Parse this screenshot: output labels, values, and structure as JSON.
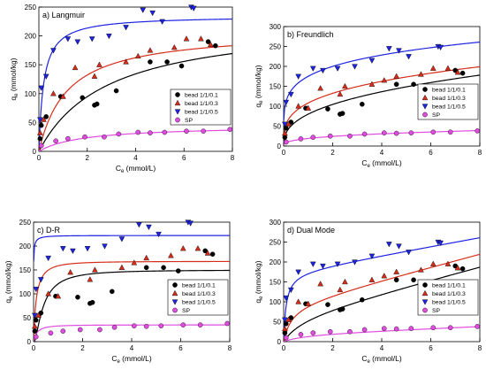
{
  "colors": {
    "bead_0_1": "#000000",
    "bead_0_3": "#d62d1a",
    "bead_0_5": "#1d23e0",
    "sp": "#e04be0"
  },
  "chart_data": [
    {
      "type": "scatter",
      "panel_label": "a) Langmuir",
      "xlabel": "Ce (mmol/L)",
      "xlabel_main": "C",
      "xlabel_sub": "e",
      "xlabel_unit": " (mmol/L)",
      "ylabel": "qe (mmol/kg)",
      "ylabel_main": "q",
      "ylabel_sub": "e",
      "ylabel_unit": " (mmol/kg)",
      "xlim": [
        0,
        8
      ],
      "ylim": [
        0,
        250
      ],
      "xticks": [
        "0",
        "2",
        "4",
        "6",
        "8"
      ],
      "yticks": [
        "0",
        "50",
        "100",
        "150",
        "200",
        "250"
      ],
      "grid": false,
      "legend_position": "lower-right",
      "series": [
        {
          "name": "bead 1/1/0.1",
          "color": "#000000",
          "marker": "circle",
          "x": [
            0.05,
            0.1,
            0.3,
            0.9,
            1.8,
            2.3,
            2.4,
            3.2,
            4.6,
            5.3,
            5.9,
            7.0,
            7.3
          ],
          "y": [
            22,
            45,
            60,
            95,
            93,
            80,
            82,
            105,
            155,
            155,
            148,
            190,
            183
          ]
        },
        {
          "name": "bead 1/1/0.3",
          "color": "#d62d1a",
          "marker": "triangle-up",
          "x": [
            0.05,
            0.2,
            0.6,
            1.0,
            1.5,
            2.3,
            2.5,
            3.6,
            4.1,
            4.6,
            5.6,
            6.1,
            6.7,
            7.1
          ],
          "y": [
            32,
            55,
            100,
            95,
            145,
            130,
            150,
            155,
            165,
            175,
            180,
            195,
            195,
            185
          ]
        },
        {
          "name": "bead 1/1/0.5",
          "color": "#1d23e0",
          "marker": "triangle-down",
          "x": [
            0.05,
            0.1,
            0.3,
            0.6,
            1.2,
            1.6,
            2.2,
            2.9,
            3.6,
            4.3,
            4.7,
            5.1,
            6.3,
            6.4
          ],
          "y": [
            55,
            110,
            130,
            175,
            195,
            190,
            195,
            200,
            215,
            245,
            240,
            225,
            250,
            248
          ]
        },
        {
          "name": "SP",
          "color": "#e04be0",
          "marker": "circle",
          "x": [
            0.1,
            0.7,
            1.2,
            1.9,
            2.7,
            3.3,
            4.1,
            4.6,
            5.2,
            6.1,
            6.8,
            7.9
          ],
          "y": [
            10,
            18,
            22,
            25,
            25,
            30,
            33,
            32,
            33,
            35,
            35,
            38
          ]
        }
      ],
      "fit_model": "langmuir",
      "fits": [
        {
          "series": "bead 1/1/0.1",
          "qm": 230,
          "KL": 0.35
        },
        {
          "series": "bead 1/1/0.3",
          "qm": 210,
          "KL": 0.85
        },
        {
          "series": "bead 1/1/0.5",
          "qm": 235,
          "KL": 5
        },
        {
          "series": "SP",
          "qm": 45,
          "KL": 0.55
        }
      ]
    },
    {
      "type": "scatter",
      "panel_label": "b) Freundlich",
      "xlabel": "Ce (mmol/L)",
      "xlabel_main": "C",
      "xlabel_sub": "e",
      "xlabel_unit": " (mmol/L)",
      "ylabel": "qe (mmol/kg)",
      "ylabel_main": "q",
      "ylabel_sub": "e",
      "ylabel_unit": " (mmol/kg)",
      "xlim": [
        0,
        8
      ],
      "ylim": [
        0,
        300
      ],
      "xticks": [
        "0",
        "2",
        "4",
        "6",
        "8"
      ],
      "yticks": [
        "0",
        "50",
        "100",
        "150",
        "200",
        "250",
        "300"
      ],
      "grid": false,
      "legend_position": "lower-right",
      "series": [
        {
          "name": "bead 1/1/0.1",
          "color": "#000000",
          "marker": "circle",
          "x": [
            0.05,
            0.1,
            0.3,
            0.9,
            1.8,
            2.3,
            2.4,
            3.2,
            4.6,
            5.3,
            5.9,
            7.0,
            7.3
          ],
          "y": [
            22,
            45,
            60,
            95,
            93,
            80,
            82,
            105,
            155,
            155,
            148,
            190,
            183
          ]
        },
        {
          "name": "bead 1/1/0.3",
          "color": "#d62d1a",
          "marker": "triangle-up",
          "x": [
            0.05,
            0.2,
            0.6,
            1.0,
            1.5,
            2.3,
            2.5,
            3.6,
            4.1,
            4.6,
            5.6,
            6.1,
            6.7,
            7.1
          ],
          "y": [
            32,
            55,
            100,
            95,
            145,
            130,
            150,
            155,
            165,
            175,
            180,
            195,
            195,
            185
          ]
        },
        {
          "name": "bead 1/1/0.5",
          "color": "#1d23e0",
          "marker": "triangle-down",
          "x": [
            0.05,
            0.1,
            0.3,
            0.6,
            1.2,
            1.6,
            2.2,
            2.9,
            3.6,
            4.3,
            4.7,
            5.1,
            6.3,
            6.4
          ],
          "y": [
            55,
            110,
            130,
            175,
            195,
            190,
            195,
            200,
            215,
            245,
            240,
            225,
            250,
            248
          ]
        },
        {
          "name": "SP",
          "color": "#e04be0",
          "marker": "circle",
          "x": [
            0.1,
            0.7,
            1.2,
            1.9,
            2.7,
            3.3,
            4.1,
            4.6,
            5.2,
            6.1,
            6.8,
            7.9
          ],
          "y": [
            10,
            18,
            22,
            25,
            25,
            30,
            33,
            32,
            33,
            35,
            35,
            38
          ]
        }
      ],
      "fit_model": "freundlich",
      "fits": [
        {
          "series": "bead 1/1/0.1",
          "KF": 80,
          "n": 2.6
        },
        {
          "series": "bead 1/1/0.3",
          "KF": 108,
          "n": 3.4
        },
        {
          "series": "bead 1/1/0.5",
          "KF": 175,
          "n": 5.2
        },
        {
          "series": "SP",
          "KF": 19,
          "n": 2.9
        }
      ]
    },
    {
      "type": "scatter",
      "panel_label": "c) D-R",
      "xlabel": "Ce (mmol/L)",
      "xlabel_main": "C",
      "xlabel_sub": "e",
      "xlabel_unit": " (mmol/L)",
      "ylabel": "qe (mmol/kg)",
      "ylabel_main": "q",
      "ylabel_sub": "e",
      "ylabel_unit": " (mmol/kg)",
      "xlim": [
        0,
        8
      ],
      "ylim": [
        0,
        250
      ],
      "xticks": [
        "0",
        "2",
        "4",
        "6",
        "8"
      ],
      "yticks": [
        "0",
        "50",
        "100",
        "150",
        "200",
        "250"
      ],
      "grid": false,
      "legend_position": "lower-right",
      "series": [
        {
          "name": "bead 1/1/0.1",
          "color": "#000000",
          "marker": "circle",
          "x": [
            0.05,
            0.1,
            0.3,
            0.9,
            1.8,
            2.3,
            2.4,
            3.2,
            4.6,
            5.3,
            5.9,
            7.0,
            7.3
          ],
          "y": [
            22,
            45,
            60,
            95,
            93,
            80,
            82,
            105,
            155,
            155,
            148,
            190,
            183
          ]
        },
        {
          "name": "bead 1/1/0.3",
          "color": "#d62d1a",
          "marker": "triangle-up",
          "x": [
            0.05,
            0.2,
            0.6,
            1.0,
            1.5,
            2.3,
            2.5,
            3.6,
            4.1,
            4.6,
            5.6,
            6.1,
            6.7,
            7.1
          ],
          "y": [
            32,
            55,
            100,
            95,
            145,
            130,
            150,
            155,
            165,
            175,
            180,
            195,
            195,
            185
          ]
        },
        {
          "name": "bead 1/1/0.5",
          "color": "#1d23e0",
          "marker": "triangle-down",
          "x": [
            0.05,
            0.1,
            0.3,
            0.6,
            1.2,
            1.6,
            2.2,
            2.9,
            3.6,
            4.3,
            4.7,
            5.1,
            6.3,
            6.4
          ],
          "y": [
            55,
            110,
            130,
            175,
            195,
            190,
            195,
            200,
            215,
            245,
            240,
            225,
            250,
            248
          ]
        },
        {
          "name": "SP",
          "color": "#e04be0",
          "marker": "circle",
          "x": [
            0.1,
            0.7,
            1.2,
            1.9,
            2.7,
            3.3,
            4.1,
            4.6,
            5.2,
            6.1,
            6.8,
            7.9
          ],
          "y": [
            10,
            18,
            22,
            25,
            25,
            30,
            33,
            32,
            33,
            35,
            35,
            38
          ]
        }
      ],
      "fit_model": "dubinin-radushkevich",
      "fits": [
        {
          "series": "bead 1/1/0.1",
          "qm": 150,
          "B": 0.45
        },
        {
          "series": "bead 1/1/0.3",
          "qm": 168,
          "B": 0.12
        },
        {
          "series": "bead 1/1/0.5",
          "qm": 222,
          "B": 0.01
        },
        {
          "series": "SP",
          "qm": 35,
          "B": 0.14
        }
      ]
    },
    {
      "type": "scatter",
      "panel_label": "d) Dual Mode",
      "xlabel": "Ce (mmol/L)",
      "xlabel_main": "C",
      "xlabel_sub": "e",
      "xlabel_unit": " (mmol/L)",
      "ylabel": "qe (mmol/kg)",
      "ylabel_main": "q",
      "ylabel_sub": "e",
      "ylabel_unit": " (mmol/kg)",
      "xlim": [
        0,
        8
      ],
      "ylim": [
        0,
        300
      ],
      "xticks": [
        "0",
        "2",
        "4",
        "6",
        "8"
      ],
      "yticks": [
        "0",
        "50",
        "100",
        "150",
        "200",
        "250",
        "300"
      ],
      "grid": false,
      "legend_position": "lower-right",
      "series": [
        {
          "name": "bead 1/1/0.1",
          "color": "#000000",
          "marker": "circle",
          "x": [
            0.05,
            0.1,
            0.3,
            0.9,
            1.8,
            2.3,
            2.4,
            3.2,
            4.6,
            5.3,
            5.9,
            7.0,
            7.3
          ],
          "y": [
            22,
            45,
            60,
            95,
            93,
            80,
            82,
            105,
            155,
            155,
            148,
            190,
            183
          ]
        },
        {
          "name": "bead 1/1/0.3",
          "color": "#d62d1a",
          "marker": "triangle-up",
          "x": [
            0.05,
            0.2,
            0.6,
            1.0,
            1.5,
            2.3,
            2.5,
            3.6,
            4.1,
            4.6,
            5.6,
            6.1,
            6.7,
            7.1
          ],
          "y": [
            32,
            55,
            100,
            95,
            145,
            130,
            150,
            155,
            165,
            175,
            180,
            195,
            195,
            185
          ]
        },
        {
          "name": "bead 1/1/0.5",
          "color": "#1d23e0",
          "marker": "triangle-down",
          "x": [
            0.05,
            0.1,
            0.3,
            0.6,
            1.2,
            1.6,
            2.2,
            2.9,
            3.6,
            4.3,
            4.7,
            5.1,
            6.3,
            6.4
          ],
          "y": [
            55,
            110,
            130,
            175,
            195,
            190,
            195,
            200,
            215,
            245,
            240,
            225,
            250,
            248
          ]
        },
        {
          "name": "SP",
          "color": "#e04be0",
          "marker": "circle",
          "x": [
            0.1,
            0.7,
            1.2,
            1.9,
            2.7,
            3.3,
            4.1,
            4.6,
            5.2,
            6.1,
            6.8,
            7.9
          ],
          "y": [
            10,
            18,
            22,
            25,
            25,
            30,
            33,
            32,
            33,
            35,
            35,
            38
          ]
        }
      ],
      "fit_model": "dual-mode",
      "fits": [
        {
          "series": "bead 1/1/0.1",
          "kD": 16,
          "qm": 65,
          "b": 1.2
        },
        {
          "series": "bead 1/1/0.3",
          "kD": 16,
          "qm": 95,
          "b": 3
        },
        {
          "series": "bead 1/1/0.5",
          "kD": 11,
          "qm": 175,
          "b": 10
        },
        {
          "series": "SP",
          "kD": 2.5,
          "qm": 20,
          "b": 1
        }
      ]
    }
  ]
}
